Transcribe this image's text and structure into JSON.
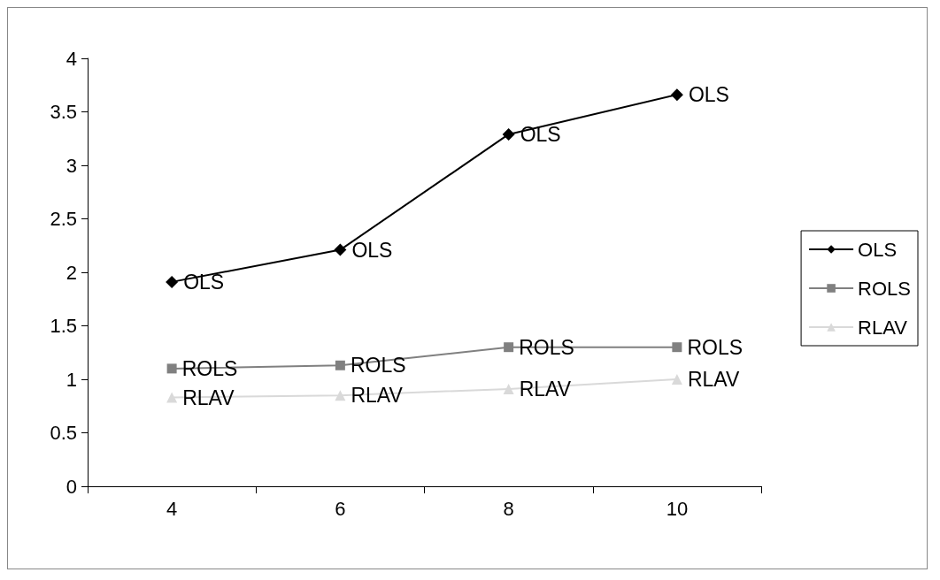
{
  "chart_data": {
    "type": "line",
    "categories": [
      "4",
      "6",
      "8",
      "10"
    ],
    "series": [
      {
        "name": "OLS",
        "color": "#000000",
        "marker": "diamond",
        "values": [
          1.91,
          2.21,
          3.29,
          3.66
        ],
        "value_labels": [
          "OLS",
          "OLS",
          "OLS",
          "OLS"
        ]
      },
      {
        "name": "ROLS",
        "color": "#808080",
        "marker": "square",
        "values": [
          1.1,
          1.13,
          1.3,
          1.3
        ],
        "value_labels": [
          "ROLS",
          "ROLS",
          "ROLS",
          "ROLS"
        ]
      },
      {
        "name": "RLAV",
        "color": "#d9d9d9",
        "marker": "triangle",
        "values": [
          0.83,
          0.85,
          0.91,
          1.0
        ],
        "value_labels": [
          "RLAV",
          "RLAV",
          "RLAV",
          "RLAV"
        ]
      }
    ],
    "ylim": [
      0,
      4
    ],
    "yticks": [
      0,
      0.5,
      1,
      1.5,
      2,
      2.5,
      3,
      3.5,
      4
    ],
    "grid": false,
    "legend": "right",
    "line_style": "solid"
  }
}
